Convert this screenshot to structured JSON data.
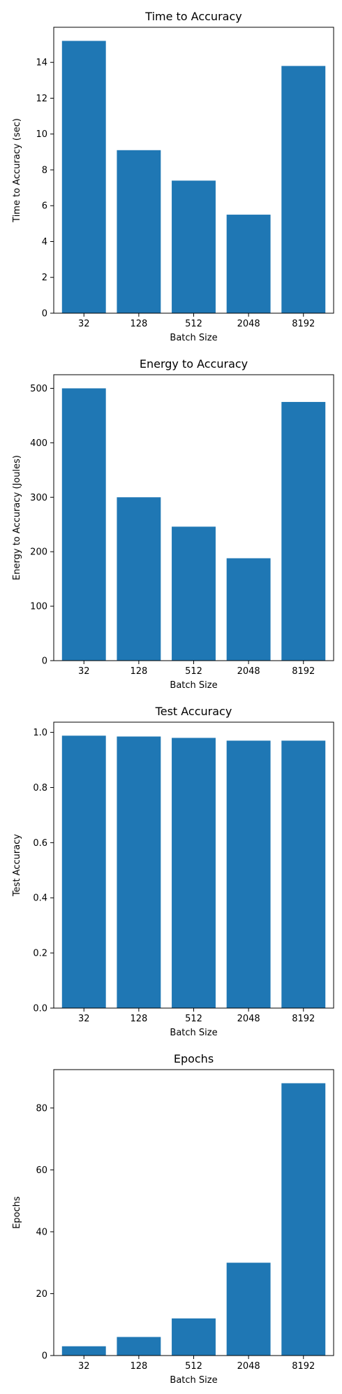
{
  "colors": {
    "bar": "#1f77b4",
    "axis": "#000000",
    "background": "#ffffff"
  },
  "chart_data": [
    {
      "type": "bar",
      "title": "Time to Accuracy",
      "xlabel": "Batch Size",
      "ylabel": "Time to Accuracy (sec)",
      "categories": [
        "32",
        "128",
        "512",
        "2048",
        "8192"
      ],
      "values": [
        15.2,
        9.1,
        7.4,
        5.5,
        13.8
      ],
      "ylim": [
        0,
        15.96
      ],
      "yticks": [
        0,
        2,
        4,
        6,
        8,
        10,
        12,
        14
      ],
      "ytick_labels": [
        "0",
        "2",
        "4",
        "6",
        "8",
        "10",
        "12",
        "14"
      ],
      "grid": false,
      "legend": "none"
    },
    {
      "type": "bar",
      "title": "Energy to Accuracy",
      "xlabel": "Batch Size",
      "ylabel": "Energy to Accuracy (Joules)",
      "categories": [
        "32",
        "128",
        "512",
        "2048",
        "8192"
      ],
      "values": [
        500,
        300,
        246,
        188,
        475
      ],
      "ylim": [
        0,
        525
      ],
      "yticks": [
        0,
        100,
        200,
        300,
        400,
        500
      ],
      "ytick_labels": [
        "0",
        "100",
        "200",
        "300",
        "400",
        "500"
      ],
      "grid": false,
      "legend": "none"
    },
    {
      "type": "bar",
      "title": "Test Accuracy",
      "xlabel": "Batch Size",
      "ylabel": "Test Accuracy",
      "categories": [
        "32",
        "128",
        "512",
        "2048",
        "8192"
      ],
      "values": [
        0.988,
        0.985,
        0.98,
        0.97,
        0.97
      ],
      "ylim": [
        0,
        1.037
      ],
      "yticks": [
        0,
        0.2,
        0.4,
        0.6,
        0.8,
        1.0
      ],
      "ytick_labels": [
        "0.0",
        "0.2",
        "0.4",
        "0.6",
        "0.8",
        "1.0"
      ],
      "grid": false,
      "legend": "none"
    },
    {
      "type": "bar",
      "title": "Epochs",
      "xlabel": "Batch Size",
      "ylabel": "Epochs",
      "categories": [
        "32",
        "128",
        "512",
        "2048",
        "8192"
      ],
      "values": [
        3,
        6,
        12,
        30,
        88
      ],
      "ylim": [
        0,
        92.4
      ],
      "yticks": [
        0,
        20,
        40,
        60,
        80
      ],
      "ytick_labels": [
        "0",
        "20",
        "40",
        "60",
        "80"
      ],
      "grid": false,
      "legend": "none"
    }
  ]
}
